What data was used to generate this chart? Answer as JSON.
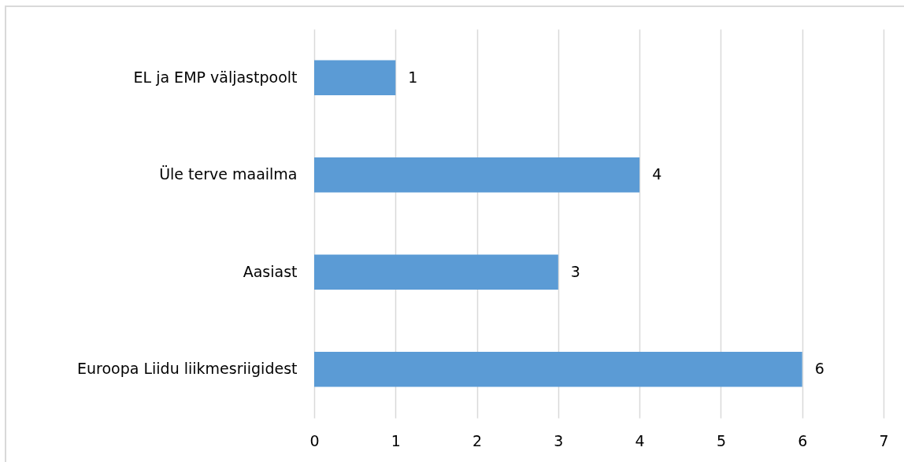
{
  "chart_data": {
    "type": "bar",
    "orientation": "horizontal",
    "categories": [
      "EL ja EMP väljastpoolt",
      "Üle terve maailma",
      "Aasiast",
      "Euroopa Liidu liikmesriigidest"
    ],
    "values": [
      1,
      4,
      3,
      6
    ],
    "color": "#5b9bd5",
    "xlim": [
      0,
      7
    ],
    "xticks": [
      0,
      1,
      2,
      3,
      4,
      5,
      6,
      7
    ],
    "grid": "x",
    "data_labels": true
  }
}
